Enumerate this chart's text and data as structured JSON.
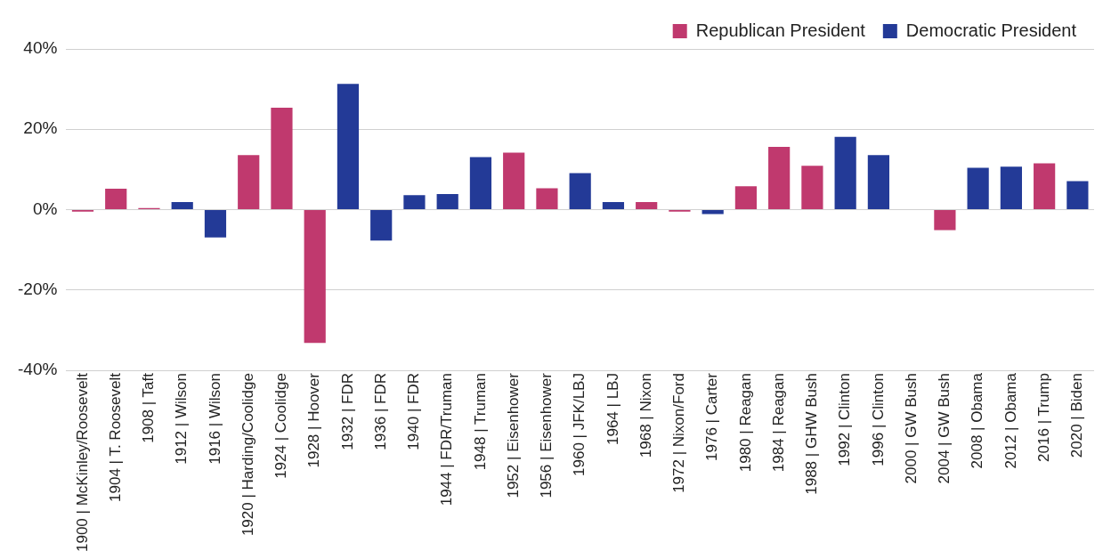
{
  "chart_data": {
    "type": "bar",
    "categories": [
      "1900 | McKinley/Roosevelt",
      "1904 | T. Roosevelt",
      "1908 | Taft",
      "1912 | Wilson",
      "1916 | Wilson",
      "1920 | Harding/Coolidge",
      "1924 | Coolidge",
      "1928 | Hoover",
      "1932 | FDR",
      "1936 | FDR",
      "1940 | FDR",
      "1944 | FDR/Truman",
      "1948 | Truman",
      "1952 | Eisenhower",
      "1956 | Eisenhower",
      "1960 | JFK/LBJ",
      "1964 | LBJ",
      "1968 | Nixon",
      "1972 | Nixon/Ford",
      "1976 | Carter",
      "1980 | Reagan",
      "1984 | Reagan",
      "1988 | GHW Bush",
      "1992 | Clinton",
      "1996 | Clinton",
      "2000 | GW Bush",
      "2004 | GW Bush",
      "2008 | Obama",
      "2012 | Obama",
      "2016 | Trump",
      "2020 | Biden"
    ],
    "series": [
      {
        "name": "Republican President",
        "color": "#c0396e",
        "values": [
          -0.5,
          5.2,
          0.4,
          null,
          null,
          13.6,
          25.4,
          -33.2,
          null,
          null,
          null,
          null,
          null,
          14.2,
          5.3,
          null,
          null,
          1.9,
          -0.5,
          null,
          5.8,
          15.6,
          10.9,
          null,
          null,
          0,
          -5.1,
          null,
          null,
          11.5,
          null
        ]
      },
      {
        "name": "Democratic President",
        "color": "#233a97",
        "values": [
          null,
          null,
          null,
          1.9,
          -6.9,
          null,
          null,
          null,
          31.3,
          -7.7,
          3.6,
          3.9,
          13.1,
          null,
          null,
          9.1,
          1.9,
          null,
          null,
          -1.1,
          null,
          null,
          null,
          18.1,
          13.6,
          null,
          null,
          10.4,
          10.7,
          null,
          7.1
        ]
      }
    ],
    "ylim": [
      -40,
      40
    ],
    "yticks": [
      {
        "value": -40,
        "label": "-40%"
      },
      {
        "value": -20,
        "label": "-20%"
      },
      {
        "value": 0,
        "label": "0%"
      },
      {
        "value": 20,
        "label": "20%"
      },
      {
        "value": 40,
        "label": "40%"
      }
    ],
    "grid": "y",
    "legend": "top right"
  }
}
